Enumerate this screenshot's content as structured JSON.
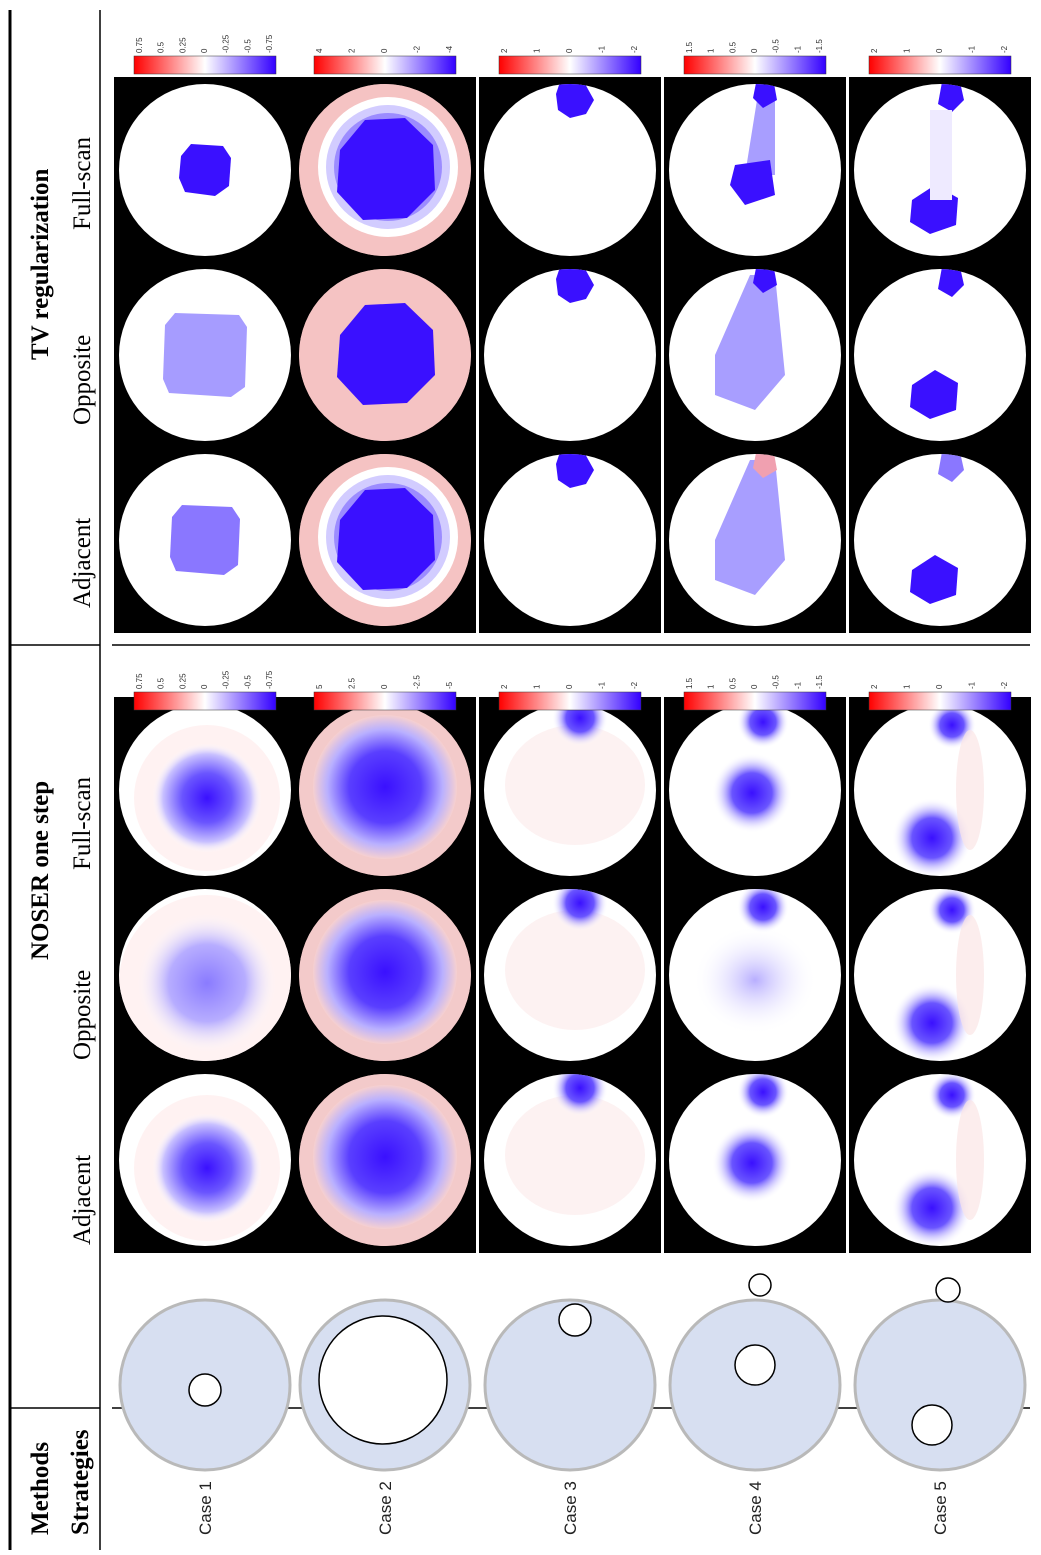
{
  "header": {
    "methods": "Methods",
    "strategies": "Strategies",
    "noser": "NOSER one step",
    "tv": "TV regularization"
  },
  "strategy_labels": [
    "Adjacent",
    "Opposite",
    "Full-scan"
  ],
  "cases": [
    "Case 1",
    "Case 2",
    "Case 3",
    "Case 4",
    "Case 5"
  ],
  "colorbars": {
    "noser": [
      [
        "0.75",
        "0.5",
        "0.25",
        "0",
        "-0.25",
        "-0.5",
        "-0.75"
      ],
      [
        "5",
        "2.5",
        "0",
        "-2.5",
        "-5"
      ],
      [
        "2",
        "1",
        "0",
        "-1",
        "-2"
      ],
      [
        "1.5",
        "1",
        "0.5",
        "0",
        "-0.5",
        "-1",
        "-1.5"
      ],
      [
        "2",
        "1",
        "0",
        "-1",
        "-2"
      ]
    ],
    "tv": [
      [
        "0.75",
        "0.5",
        "0.25",
        "0",
        "-0.25",
        "-0.5",
        "-0.75"
      ],
      [
        "4",
        "2",
        "0",
        "-2",
        "-4"
      ],
      [
        "2",
        "1",
        "0",
        "-1",
        "-2"
      ],
      [
        "1.5",
        "1",
        "0.5",
        "0",
        "-0.5",
        "-1",
        "-1.5"
      ],
      [
        "2",
        "1",
        "0",
        "-1",
        "-2"
      ]
    ]
  },
  "colors": {
    "positive": "#ff0000",
    "neutral": "#ffffff",
    "negative": "#3300ff",
    "phantom_fill": "#d7dff1",
    "phantom_rim": "#b9b9b9",
    "panel_bg": "#000000"
  }
}
